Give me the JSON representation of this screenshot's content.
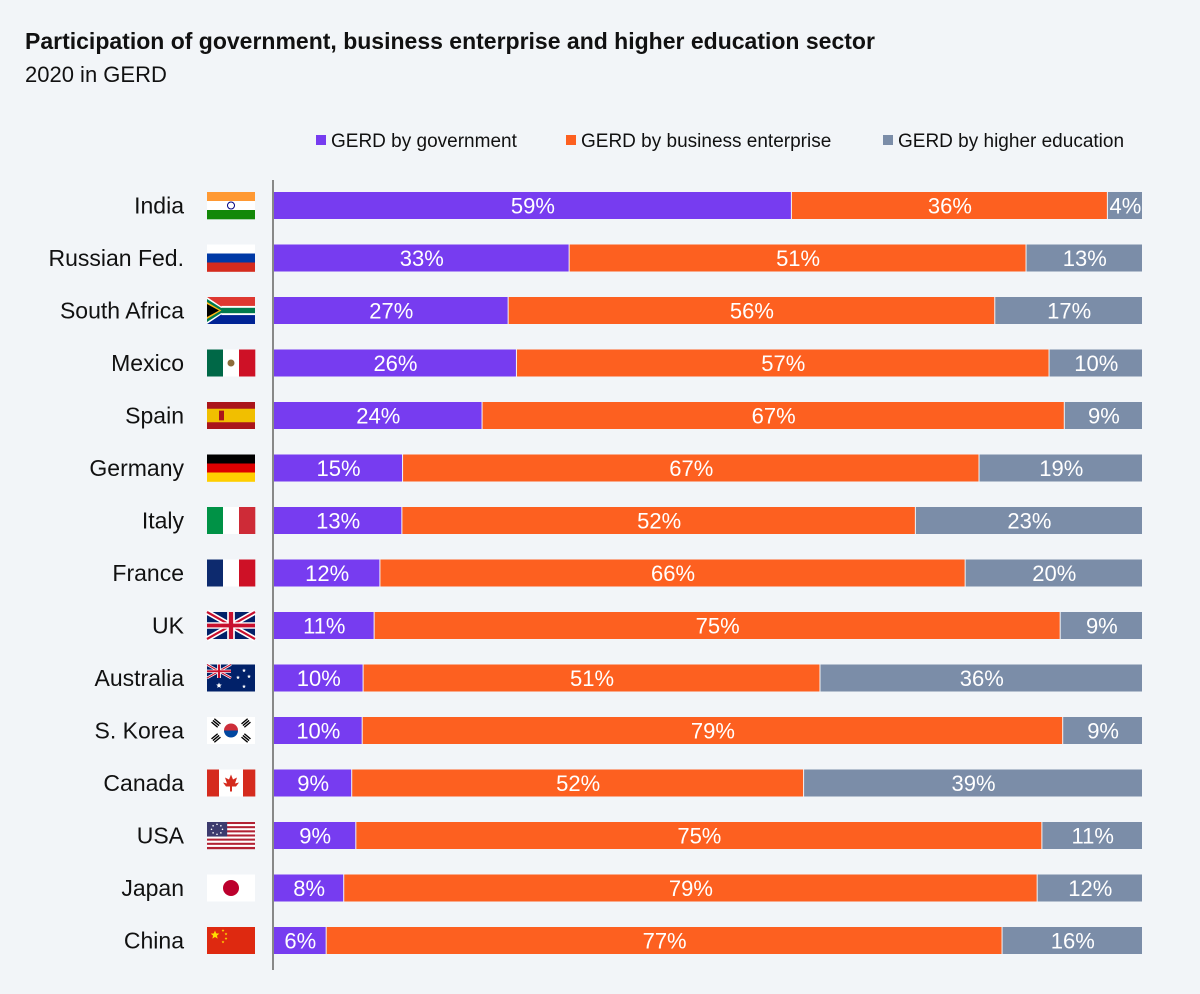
{
  "title": "Participation of government, business enterprise and higher education sector",
  "subtitle": "2020 in GERD",
  "colors": {
    "government": "#773cf0",
    "business": "#fd6020",
    "higher_education": "#7b8da8",
    "axis": "#888888",
    "label": "#ffffff",
    "text": "#111111"
  },
  "chart_data": {
    "type": "bar",
    "orientation": "horizontal",
    "stacked": true,
    "legend_position": "top-right",
    "grid": false,
    "categories": [
      "India",
      "Russian Fed.",
      "South Africa",
      "Mexico",
      "Spain",
      "Germany",
      "Italy",
      "France",
      "UK",
      "Australia",
      "S. Korea",
      "Canada",
      "USA",
      "Japan",
      "China"
    ],
    "flags": [
      "india-flag",
      "russia-flag",
      "south-africa-flag",
      "mexico-flag",
      "spain-flag",
      "germany-flag",
      "italy-flag",
      "france-flag",
      "uk-flag",
      "australia-flag",
      "south-korea-flag",
      "canada-flag",
      "usa-flag",
      "japan-flag",
      "china-flag"
    ],
    "series": [
      {
        "name": "GERD by government",
        "values": [
          59,
          33,
          27,
          26,
          24,
          15,
          13,
          12,
          11,
          10,
          10,
          9,
          9,
          8,
          6
        ]
      },
      {
        "name": "GERD by business enterprise",
        "values": [
          36,
          51,
          56,
          57,
          67,
          67,
          52,
          66,
          75,
          51,
          79,
          52,
          75,
          79,
          77
        ]
      },
      {
        "name": "GERD by higher education",
        "values": [
          4,
          13,
          17,
          10,
          9,
          19,
          23,
          20,
          9,
          36,
          9,
          39,
          11,
          12,
          16
        ]
      }
    ],
    "value_suffix": "%"
  }
}
